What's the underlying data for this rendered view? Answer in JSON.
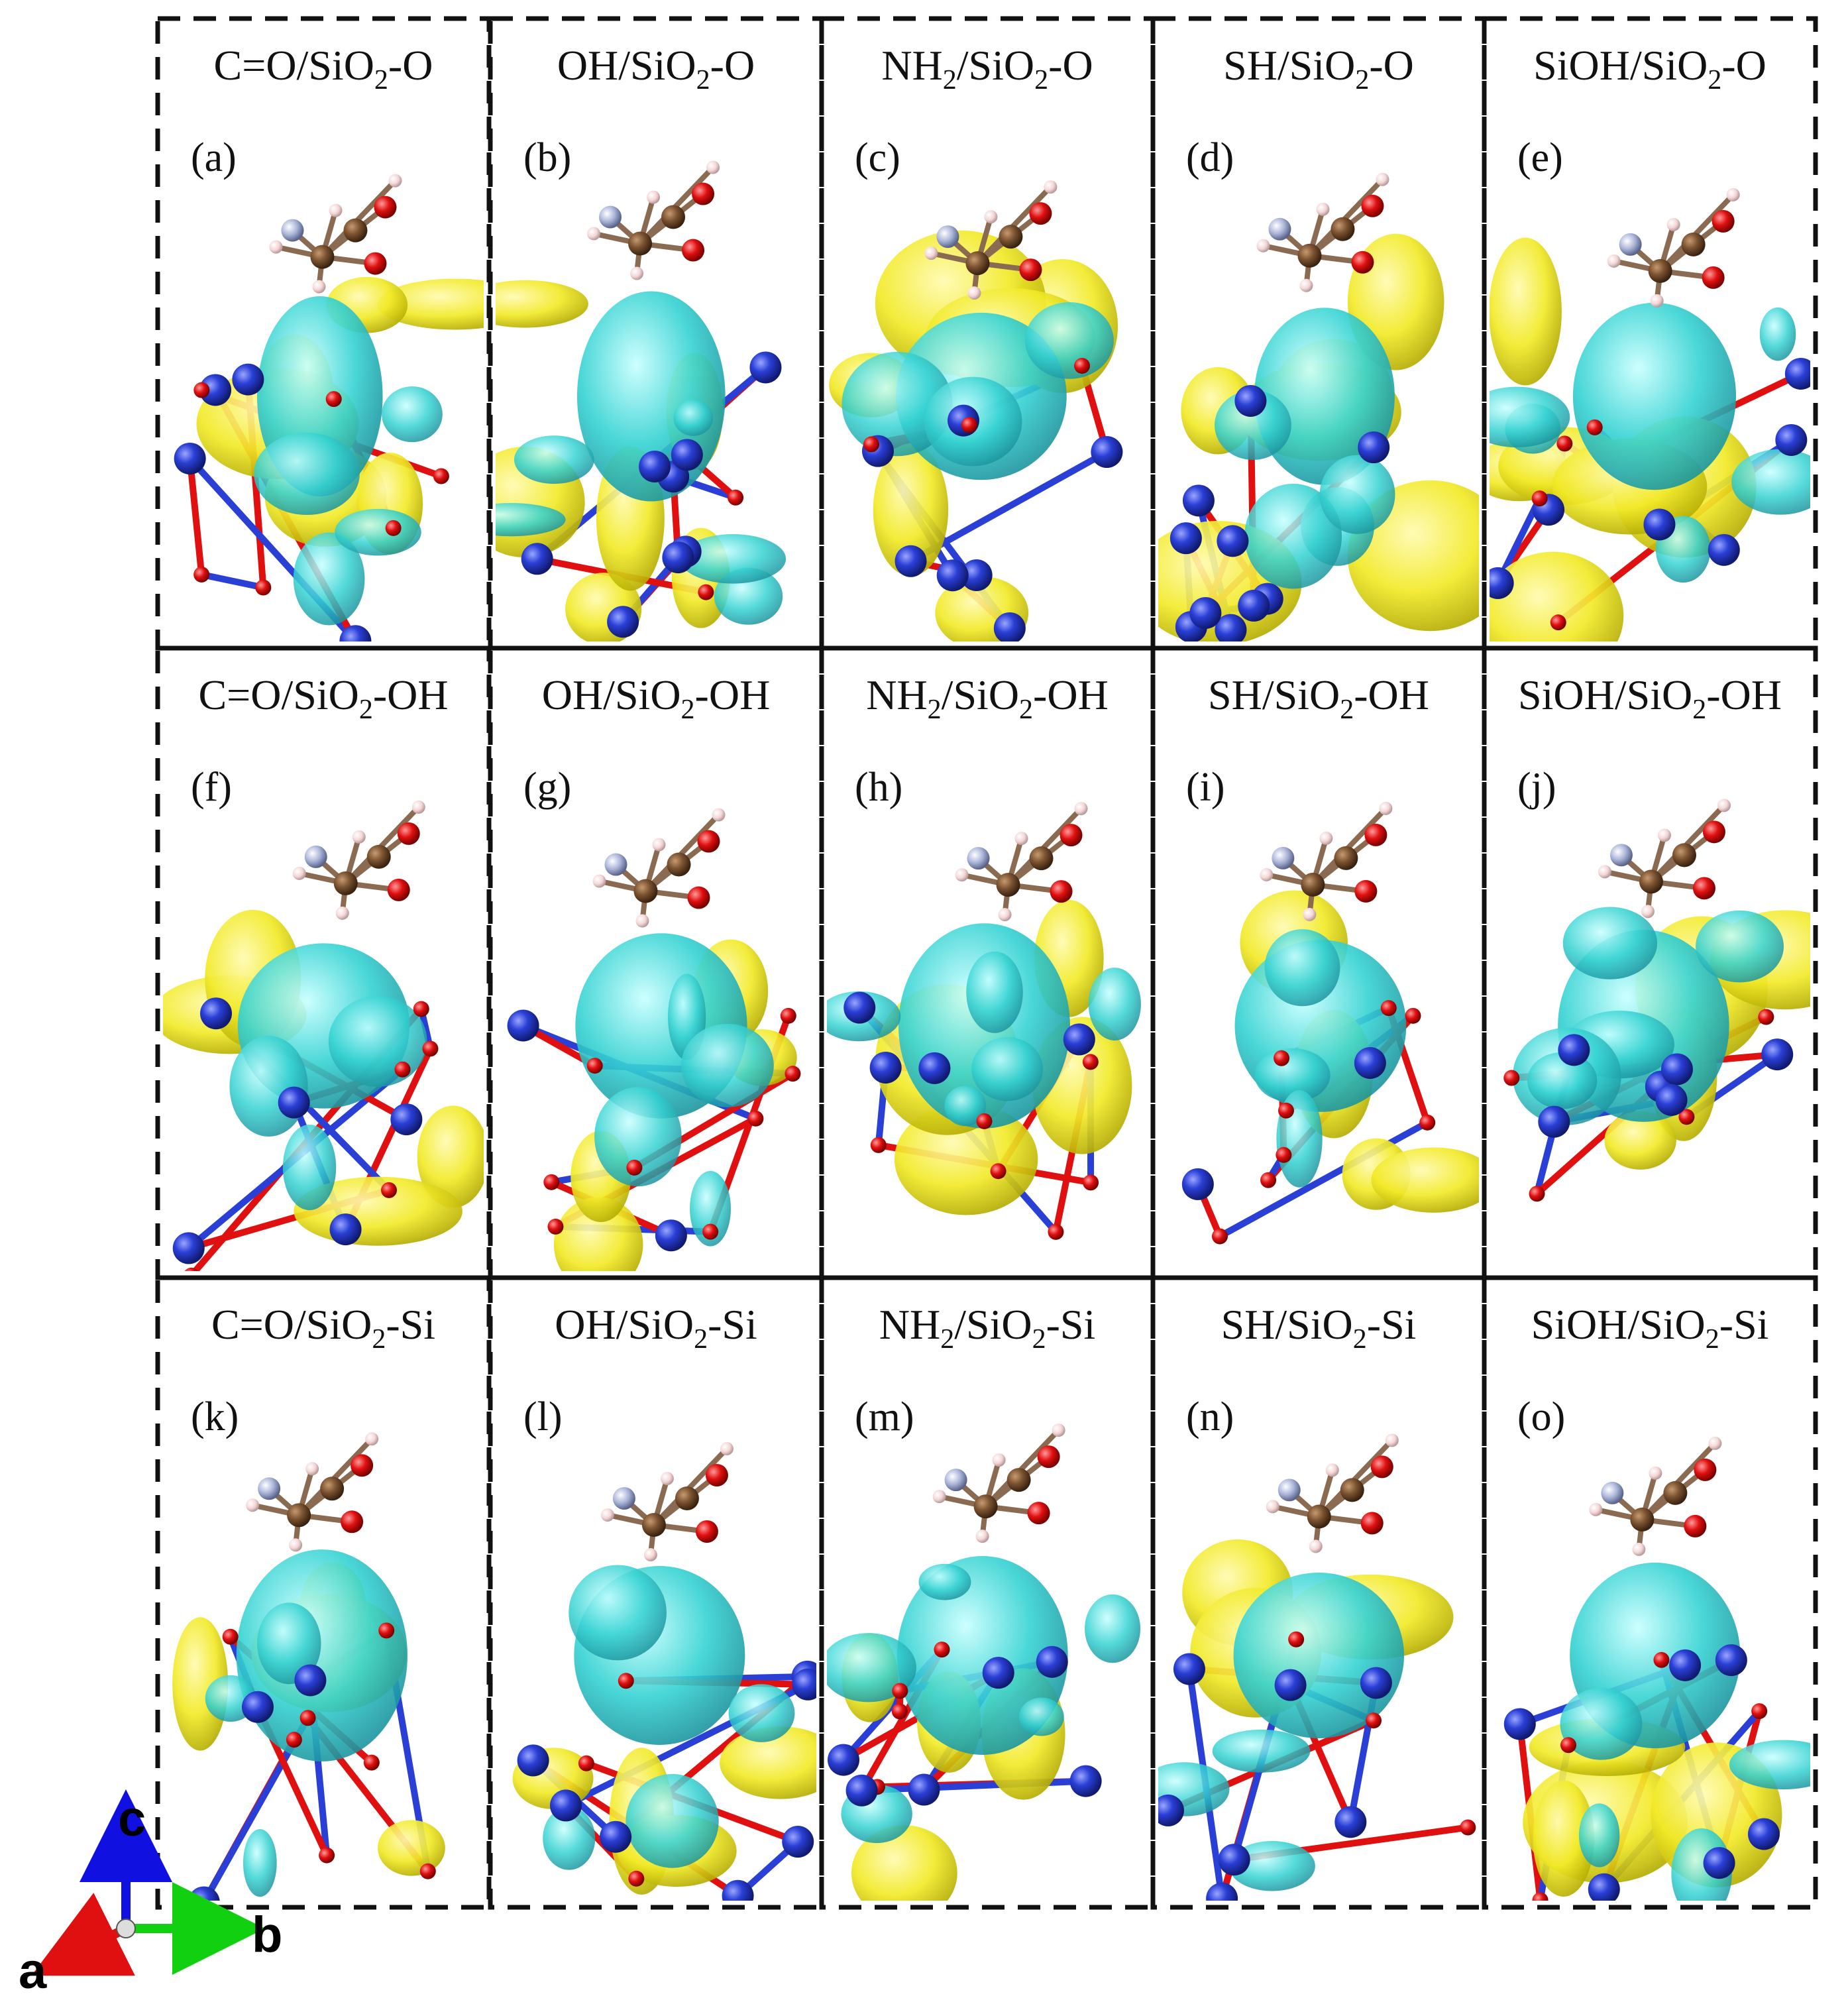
{
  "figure": {
    "panels": [
      {
        "id": "a",
        "title_main": "C=O/SiO",
        "title_sub": "2",
        "title_rest": "-O",
        "label": "(a)"
      },
      {
        "id": "b",
        "title_main": "OH/SiO",
        "title_sub": "2",
        "title_rest": "-O",
        "label": "(b)"
      },
      {
        "id": "c",
        "title_pre": "NH",
        "title_pre_sub": "2",
        "title_main": "/SiO",
        "title_sub": "2",
        "title_rest": "-O",
        "label": "(c)"
      },
      {
        "id": "d",
        "title_main": "SH/SiO",
        "title_sub": "2",
        "title_rest": "-O",
        "label": "(d)"
      },
      {
        "id": "e",
        "title_main": "SiOH/SiO",
        "title_sub": "2",
        "title_rest": "-O",
        "label": "(e)"
      },
      {
        "id": "f",
        "title_main": "C=O/SiO",
        "title_sub": "2",
        "title_rest": "-OH",
        "label": "(f)"
      },
      {
        "id": "g",
        "title_main": "OH/SiO",
        "title_sub": "2",
        "title_rest": "-OH",
        "label": "(g)"
      },
      {
        "id": "h",
        "title_pre": "NH",
        "title_pre_sub": "2",
        "title_main": "/SiO",
        "title_sub": "2",
        "title_rest": "-OH",
        "label": "(h)"
      },
      {
        "id": "i",
        "title_main": "SH/SiO",
        "title_sub": "2",
        "title_rest": "-OH",
        "label": "(i)"
      },
      {
        "id": "j",
        "title_main": "SiOH/SiO",
        "title_sub": "2",
        "title_rest": "-OH",
        "label": "(j)"
      },
      {
        "id": "k",
        "title_main": "C=O/SiO",
        "title_sub": "2",
        "title_rest": "-Si",
        "label": "(k)"
      },
      {
        "id": "l",
        "title_main": "OH/SiO",
        "title_sub": "2",
        "title_rest": "-Si",
        "label": "(l)"
      },
      {
        "id": "m",
        "title_pre": "NH",
        "title_pre_sub": "2",
        "title_main": "/SiO",
        "title_sub": "2",
        "title_rest": "-Si",
        "label": "(m)"
      },
      {
        "id": "n",
        "title_main": "SH/SiO",
        "title_sub": "2",
        "title_rest": "-Si",
        "label": "(n)"
      },
      {
        "id": "o",
        "title_main": "SiOH/SiO",
        "title_sub": "2",
        "title_rest": "-Si",
        "label": "(o)"
      }
    ],
    "axes": {
      "a": "a",
      "b": "b",
      "c": "c"
    },
    "colors": {
      "accumulation": "#f2ea28",
      "depletion": "#35d2d2",
      "si_atom": "#2a3fd6",
      "o_atom": "#e01010",
      "c_atom": "#7a5230",
      "h_atom": "#f4d6d6",
      "n_atom": "#aab4d8",
      "frame": "#111111"
    }
  }
}
